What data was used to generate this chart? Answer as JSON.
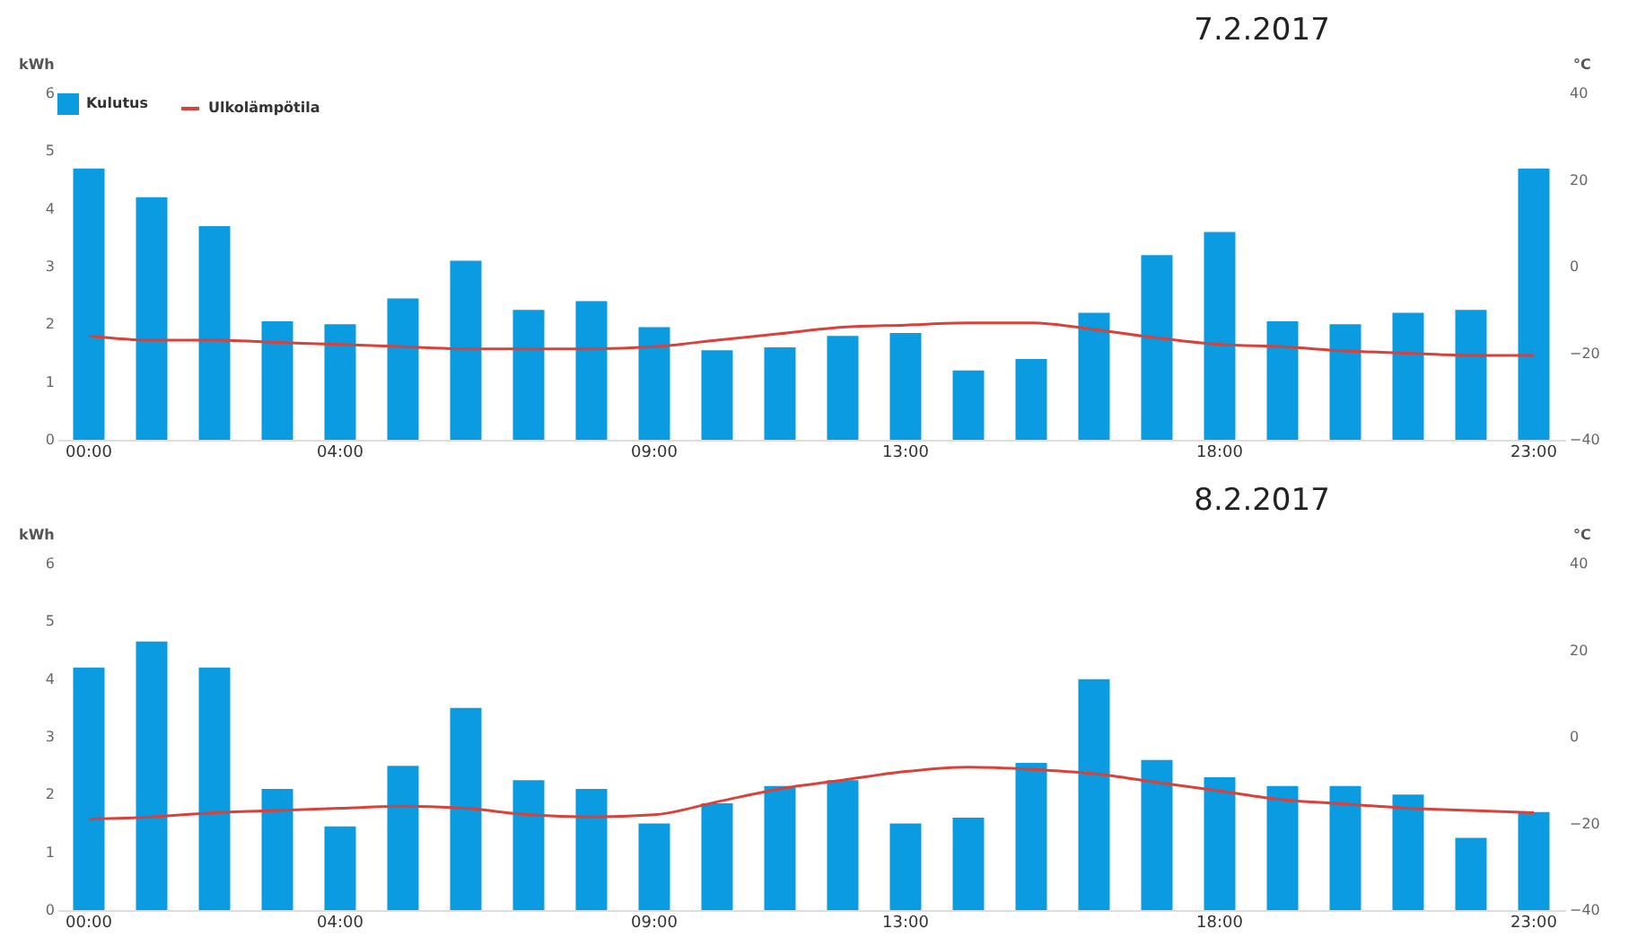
{
  "chart_data": [
    {
      "type": "bar",
      "title": "7.2.2017",
      "ylabel": "kWh",
      "y2label": "°C",
      "legend": "top left",
      "grid": false,
      "categories": [
        "00:00",
        null,
        null,
        null,
        "04:00",
        null,
        null,
        null,
        null,
        "09:00",
        null,
        null,
        null,
        "13:00",
        null,
        null,
        null,
        null,
        "18:00",
        null,
        null,
        null,
        null,
        "23:00"
      ],
      "series": [
        {
          "name": "Kulutus",
          "color": "#0a9be0",
          "values": [
            4.7,
            4.2,
            3.7,
            2.05,
            2.0,
            2.45,
            3.1,
            2.25,
            2.4,
            1.95,
            1.55,
            1.6,
            1.8,
            1.85,
            1.2,
            1.4,
            2.2,
            3.2,
            3.6,
            2.05,
            2.0,
            2.2,
            2.25,
            4.7
          ]
        },
        {
          "name": "Ulkolämpötila",
          "type": "line",
          "axis": "y2",
          "color": "#d9413b",
          "values": [
            -16,
            -17,
            -17,
            -17.5,
            -18,
            -18.5,
            -19,
            -19,
            -19,
            -18.5,
            -17,
            -15.5,
            -14,
            -13.5,
            -13,
            -13,
            -14.5,
            -16.5,
            -18,
            -18.5,
            -19.5,
            -20,
            -20.5,
            -20.5
          ]
        }
      ],
      "ylim": [
        0,
        6
      ],
      "yticks": [
        0,
        1,
        2,
        3,
        4,
        5,
        6
      ],
      "y2lim": [
        -40,
        40
      ],
      "y2ticks": [
        -40,
        -20,
        0,
        20,
        40
      ]
    },
    {
      "type": "bar",
      "title": "8.2.2017",
      "ylabel": "kWh",
      "y2label": "°C",
      "legend": "top left",
      "grid": false,
      "categories": [
        "00:00",
        null,
        null,
        null,
        "04:00",
        null,
        null,
        null,
        null,
        "09:00",
        null,
        null,
        null,
        "13:00",
        null,
        null,
        null,
        null,
        "18:00",
        null,
        null,
        null,
        null,
        "23:00"
      ],
      "series": [
        {
          "name": "Kulutus",
          "color": "#0a9be0",
          "values": [
            4.2,
            4.65,
            4.2,
            2.1,
            1.45,
            2.5,
            3.5,
            2.25,
            2.1,
            1.5,
            1.85,
            2.15,
            2.25,
            1.5,
            1.6,
            2.55,
            4.0,
            2.6,
            2.3,
            2.15,
            2.15,
            2.0,
            1.25,
            1.7
          ]
        },
        {
          "name": "Ulkolämpötila",
          "type": "line",
          "axis": "y2",
          "color": "#d9413b",
          "values": [
            -19,
            -18.5,
            -17.5,
            -17,
            -16.5,
            -16,
            -16.5,
            -18,
            -18.5,
            -18,
            -15,
            -12,
            -10,
            -8,
            -7,
            -7.5,
            -8.5,
            -10.5,
            -12.5,
            -14.5,
            -15.5,
            -16.5,
            -17,
            -17.5
          ]
        }
      ],
      "ylim": [
        0,
        6
      ],
      "yticks": [
        0,
        1,
        2,
        3,
        4,
        5,
        6
      ],
      "y2lim": [
        -40,
        40
      ],
      "y2ticks": [
        -40,
        -20,
        0,
        20,
        40
      ]
    }
  ]
}
